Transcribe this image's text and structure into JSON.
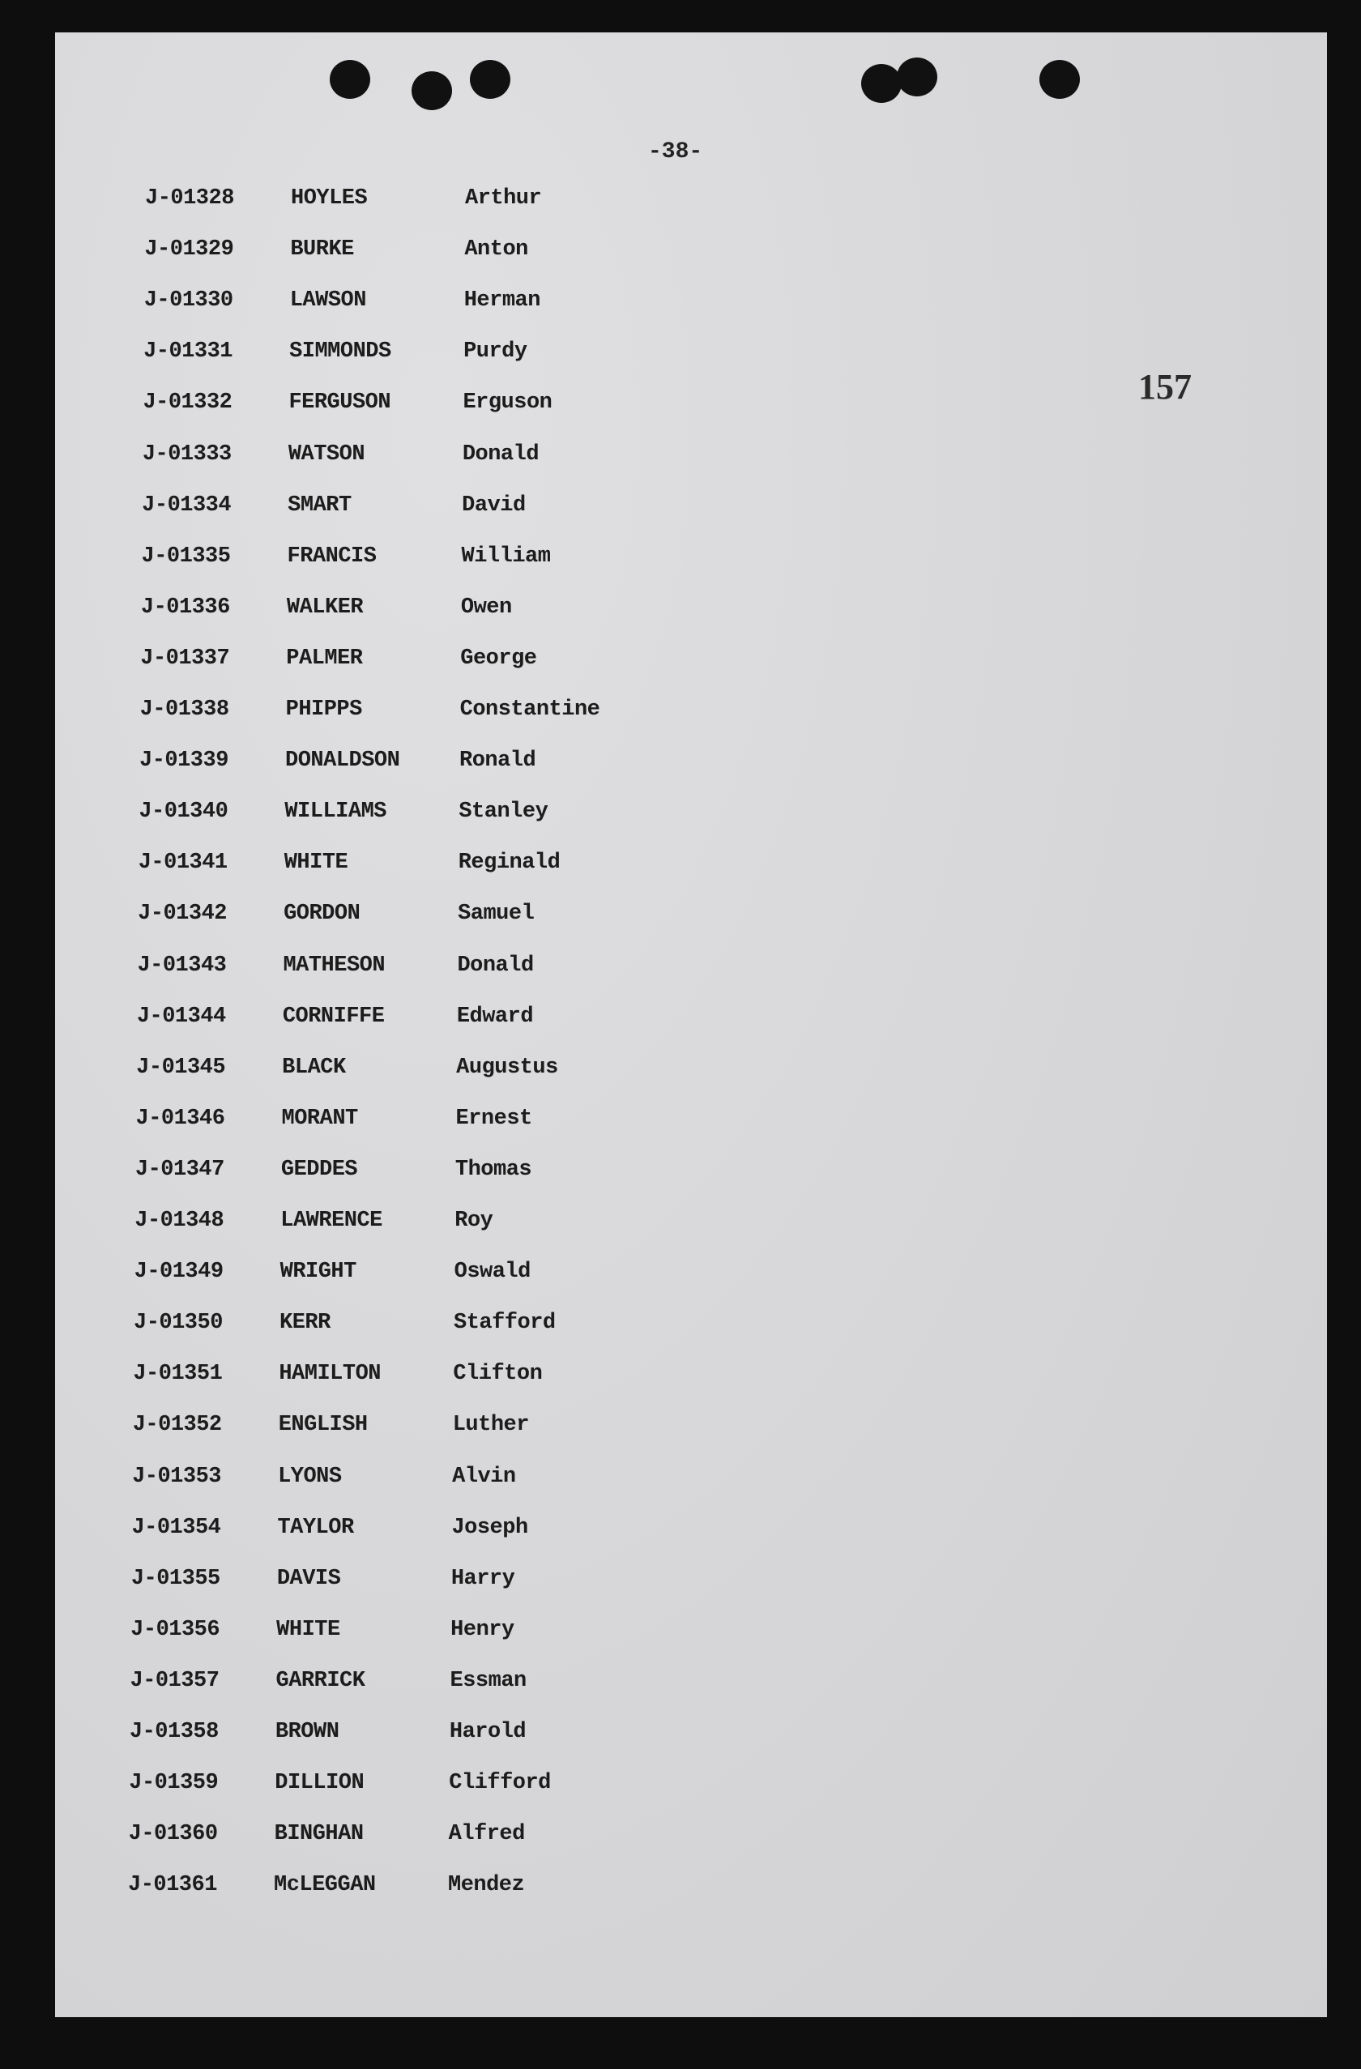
{
  "page_number": "-38-",
  "stamp_number": "157",
  "rows": [
    {
      "id": "J-01328",
      "surname": "HOYLES",
      "given": "Arthur"
    },
    {
      "id": "J-01329",
      "surname": "BURKE",
      "given": "Anton"
    },
    {
      "id": "J-01330",
      "surname": "LAWSON",
      "given": "Herman"
    },
    {
      "id": "J-01331",
      "surname": "SIMMONDS",
      "given": "Purdy"
    },
    {
      "id": "J-01332",
      "surname": "FERGUSON",
      "given": "Erguson"
    },
    {
      "id": "J-01333",
      "surname": "WATSON",
      "given": "Donald"
    },
    {
      "id": "J-01334",
      "surname": "SMART",
      "given": "David"
    },
    {
      "id": "J-01335",
      "surname": "FRANCIS",
      "given": "William"
    },
    {
      "id": "J-01336",
      "surname": "WALKER",
      "given": "Owen"
    },
    {
      "id": "J-01337",
      "surname": "PALMER",
      "given": "George"
    },
    {
      "id": "J-01338",
      "surname": "PHIPPS",
      "given": "Constantine"
    },
    {
      "id": "J-01339",
      "surname": "DONALDSON",
      "given": "Ronald"
    },
    {
      "id": "J-01340",
      "surname": "WILLIAMS",
      "given": "Stanley"
    },
    {
      "id": "J-01341",
      "surname": "WHITE",
      "given": "Reginald"
    },
    {
      "id": "J-01342",
      "surname": "GORDON",
      "given": "Samuel"
    },
    {
      "id": "J-01343",
      "surname": "MATHESON",
      "given": "Donald"
    },
    {
      "id": "J-01344",
      "surname": "CORNIFFE",
      "given": "Edward"
    },
    {
      "id": "J-01345",
      "surname": "BLACK",
      "given": "Augustus"
    },
    {
      "id": "J-01346",
      "surname": "MORANT",
      "given": "Ernest"
    },
    {
      "id": "J-01347",
      "surname": "GEDDES",
      "given": "Thomas"
    },
    {
      "id": "J-01348",
      "surname": "LAWRENCE",
      "given": "Roy"
    },
    {
      "id": "J-01349",
      "surname": "WRIGHT",
      "given": "Oswald"
    },
    {
      "id": "J-01350",
      "surname": "KERR",
      "given": "Stafford"
    },
    {
      "id": "J-01351",
      "surname": "HAMILTON",
      "given": "Clifton"
    },
    {
      "id": "J-01352",
      "surname": "ENGLISH",
      "given": "Luther"
    },
    {
      "id": "J-01353",
      "surname": "LYONS",
      "given": "Alvin"
    },
    {
      "id": "J-01354",
      "surname": "TAYLOR",
      "given": "Joseph"
    },
    {
      "id": "J-01355",
      "surname": "DAVIS",
      "given": "Harry"
    },
    {
      "id": "J-01356",
      "surname": "WHITE",
      "given": "Henry"
    },
    {
      "id": "J-01357",
      "surname": "GARRICK",
      "given": "Essman"
    },
    {
      "id": "J-01358",
      "surname": "BROWN",
      "given": "Harold"
    },
    {
      "id": "J-01359",
      "surname": "DILLION",
      "given": "Clifford"
    },
    {
      "id": "J-01360",
      "surname": "BINGHAN",
      "given": "Alfred"
    },
    {
      "id": "J-01361",
      "surname": "McLEGGAN",
      "given": "Mendez"
    }
  ]
}
